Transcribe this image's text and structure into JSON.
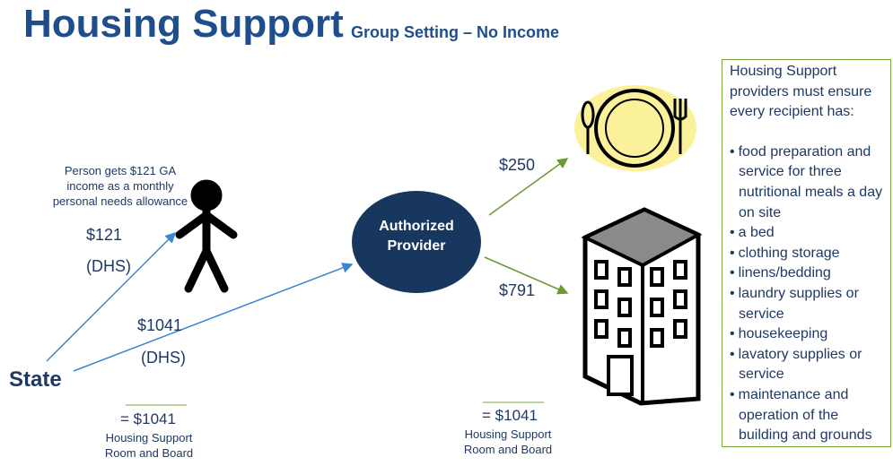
{
  "header": {
    "title": "Housing Support",
    "subtitle": "Group Setting – No Income"
  },
  "nodes": {
    "state": "State",
    "provider": "Authorized Provider"
  },
  "person_note": "Person gets $121 GA income as a monthly personal needs allowance",
  "flows": [
    {
      "amount": "$121",
      "source": "(DHS)"
    },
    {
      "amount": "$1041",
      "source": "(DHS)"
    },
    {
      "amount": "$250"
    },
    {
      "amount": "$791"
    }
  ],
  "totals": [
    {
      "amount": "= $1041",
      "label": "Housing Support Room and Board"
    },
    {
      "amount": "= $1041",
      "label": "Housing Support Room and Board"
    }
  ],
  "sidebar": {
    "heading": "Housing Support providers must ensure every recipient has:",
    "items": [
      "food preparation and service for three nutritional meals a day on site",
      "a bed",
      "clothing storage",
      "linens/bedding",
      "laundry supplies or service",
      "housekeeping",
      "lavatory supplies or service",
      "maintenance and operation of the building and grounds"
    ]
  }
}
